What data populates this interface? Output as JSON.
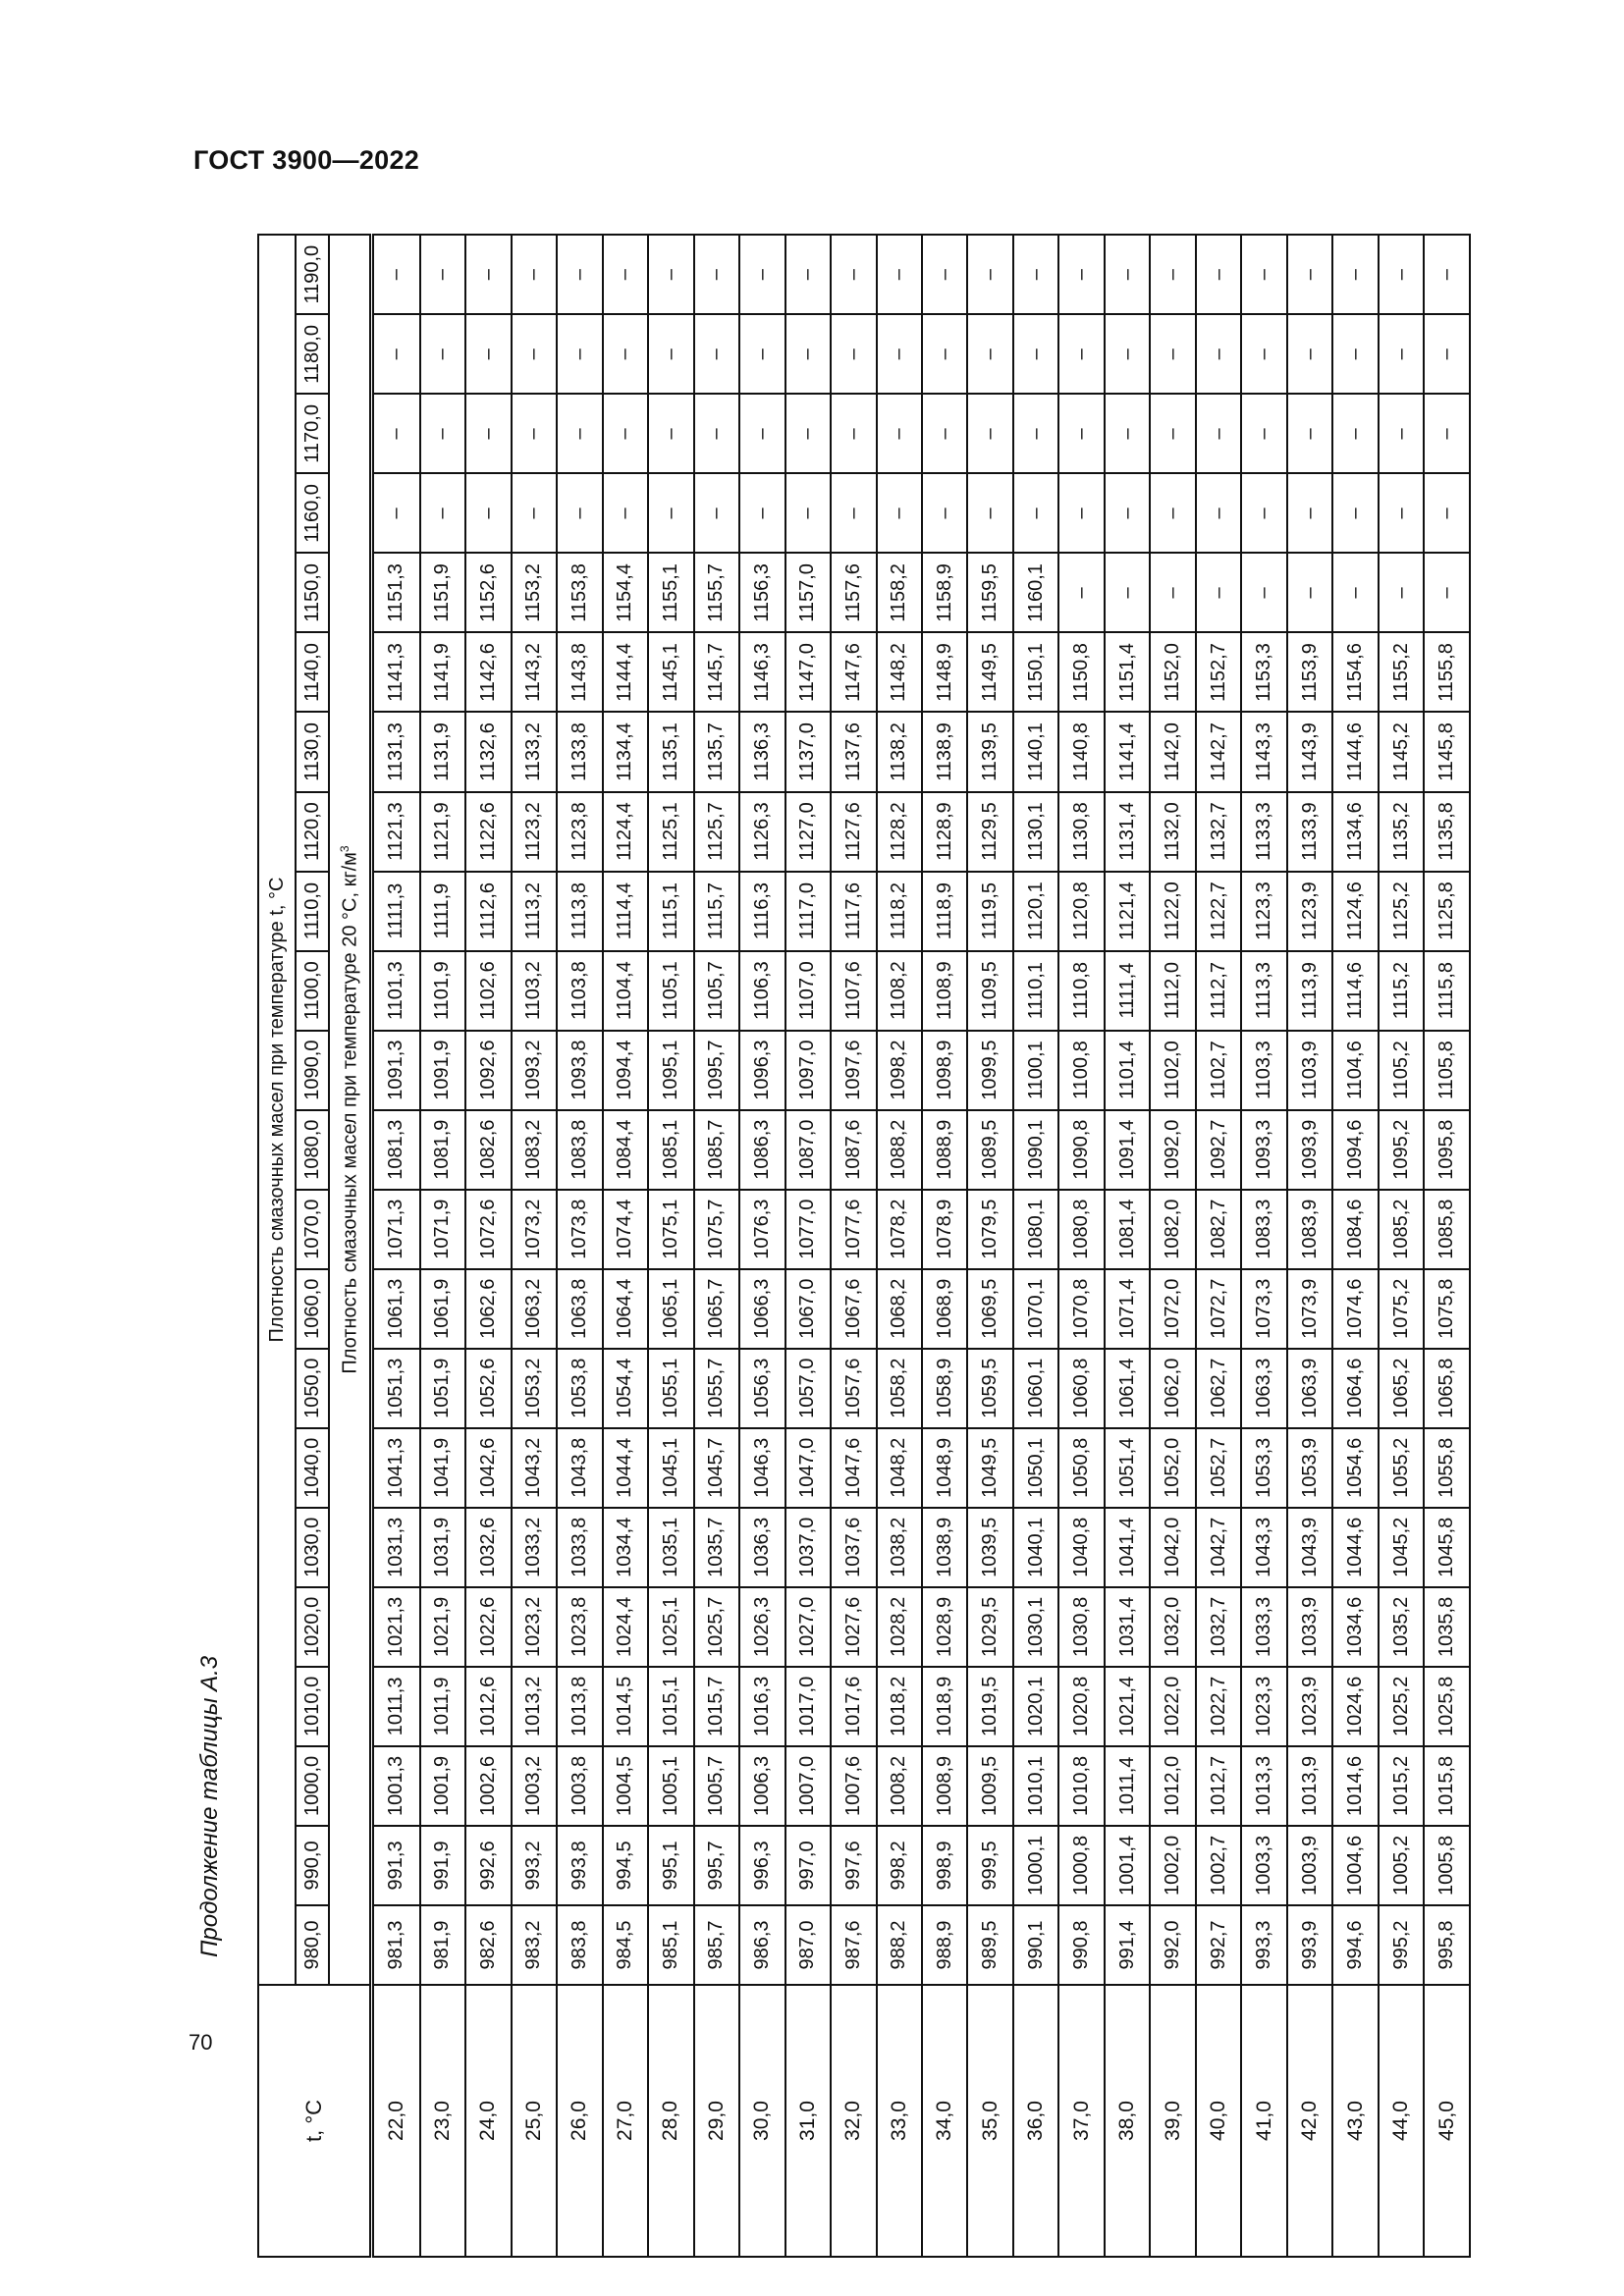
{
  "document": {
    "title": "ГОСТ 3900—2022",
    "page_number": "70"
  },
  "table": {
    "caption": "Продолжение таблицы А.3",
    "t_header": "t, °C",
    "header_main": "Плотность смазочных масел при температуре t, °C",
    "header_sub": "Плотность смазочных масел при температуре 20 °С, кг/м",
    "header_sub_sup": "3",
    "densities": [
      "980,0",
      "990,0",
      "1000,0",
      "1010,0",
      "1020,0",
      "1030,0",
      "1040,0",
      "1050,0",
      "1060,0",
      "1070,0",
      "1080,0",
      "1090,0",
      "1100,0",
      "1110,0",
      "1120,0",
      "1130,0",
      "1140,0",
      "1150,0",
      "1160,0",
      "1170,0",
      "1180,0",
      "1190,0"
    ],
    "rows": [
      {
        "t": "22,0",
        "v": [
          "981,3",
          "991,3",
          "1001,3",
          "1011,3",
          "1021,3",
          "1031,3",
          "1041,3",
          "1051,3",
          "1061,3",
          "1071,3",
          "1081,3",
          "1091,3",
          "1101,3",
          "1111,3",
          "1121,3",
          "1131,3",
          "1141,3",
          "1151,3",
          "–",
          "–",
          "–",
          "–"
        ]
      },
      {
        "t": "23,0",
        "v": [
          "981,9",
          "991,9",
          "1001,9",
          "1011,9",
          "1021,9",
          "1031,9",
          "1041,9",
          "1051,9",
          "1061,9",
          "1071,9",
          "1081,9",
          "1091,9",
          "1101,9",
          "1111,9",
          "1121,9",
          "1131,9",
          "1141,9",
          "1151,9",
          "–",
          "–",
          "–",
          "–"
        ]
      },
      {
        "t": "24,0",
        "v": [
          "982,6",
          "992,6",
          "1002,6",
          "1012,6",
          "1022,6",
          "1032,6",
          "1042,6",
          "1052,6",
          "1062,6",
          "1072,6",
          "1082,6",
          "1092,6",
          "1102,6",
          "1112,6",
          "1122,6",
          "1132,6",
          "1142,6",
          "1152,6",
          "–",
          "–",
          "–",
          "–"
        ]
      },
      {
        "t": "25,0",
        "v": [
          "983,2",
          "993,2",
          "1003,2",
          "1013,2",
          "1023,2",
          "1033,2",
          "1043,2",
          "1053,2",
          "1063,2",
          "1073,2",
          "1083,2",
          "1093,2",
          "1103,2",
          "1113,2",
          "1123,2",
          "1133,2",
          "1143,2",
          "1153,2",
          "–",
          "–",
          "–",
          "–"
        ]
      },
      {
        "t": "26,0",
        "v": [
          "983,8",
          "993,8",
          "1003,8",
          "1013,8",
          "1023,8",
          "1033,8",
          "1043,8",
          "1053,8",
          "1063,8",
          "1073,8",
          "1083,8",
          "1093,8",
          "1103,8",
          "1113,8",
          "1123,8",
          "1133,8",
          "1143,8",
          "1153,8",
          "–",
          "–",
          "–",
          "–"
        ]
      },
      {
        "t": "27,0",
        "v": [
          "984,5",
          "994,5",
          "1004,5",
          "1014,5",
          "1024,4",
          "1034,4",
          "1044,4",
          "1054,4",
          "1064,4",
          "1074,4",
          "1084,4",
          "1094,4",
          "1104,4",
          "1114,4",
          "1124,4",
          "1134,4",
          "1144,4",
          "1154,4",
          "–",
          "–",
          "–",
          "–"
        ]
      },
      {
        "t": "28,0",
        "v": [
          "985,1",
          "995,1",
          "1005,1",
          "1015,1",
          "1025,1",
          "1035,1",
          "1045,1",
          "1055,1",
          "1065,1",
          "1075,1",
          "1085,1",
          "1095,1",
          "1105,1",
          "1115,1",
          "1125,1",
          "1135,1",
          "1145,1",
          "1155,1",
          "–",
          "–",
          "–",
          "–"
        ]
      },
      {
        "t": "29,0",
        "v": [
          "985,7",
          "995,7",
          "1005,7",
          "1015,7",
          "1025,7",
          "1035,7",
          "1045,7",
          "1055,7",
          "1065,7",
          "1075,7",
          "1085,7",
          "1095,7",
          "1105,7",
          "1115,7",
          "1125,7",
          "1135,7",
          "1145,7",
          "1155,7",
          "–",
          "–",
          "–",
          "–"
        ]
      },
      {
        "t": "30,0",
        "v": [
          "986,3",
          "996,3",
          "1006,3",
          "1016,3",
          "1026,3",
          "1036,3",
          "1046,3",
          "1056,3",
          "1066,3",
          "1076,3",
          "1086,3",
          "1096,3",
          "1106,3",
          "1116,3",
          "1126,3",
          "1136,3",
          "1146,3",
          "1156,3",
          "–",
          "–",
          "–",
          "–"
        ]
      },
      {
        "t": "31,0",
        "v": [
          "987,0",
          "997,0",
          "1007,0",
          "1017,0",
          "1027,0",
          "1037,0",
          "1047,0",
          "1057,0",
          "1067,0",
          "1077,0",
          "1087,0",
          "1097,0",
          "1107,0",
          "1117,0",
          "1127,0",
          "1137,0",
          "1147,0",
          "1157,0",
          "–",
          "–",
          "–",
          "–"
        ]
      },
      {
        "t": "32,0",
        "v": [
          "987,6",
          "997,6",
          "1007,6",
          "1017,6",
          "1027,6",
          "1037,6",
          "1047,6",
          "1057,6",
          "1067,6",
          "1077,6",
          "1087,6",
          "1097,6",
          "1107,6",
          "1117,6",
          "1127,6",
          "1137,6",
          "1147,6",
          "1157,6",
          "–",
          "–",
          "–",
          "–"
        ]
      },
      {
        "t": "33,0",
        "v": [
          "988,2",
          "998,2",
          "1008,2",
          "1018,2",
          "1028,2",
          "1038,2",
          "1048,2",
          "1058,2",
          "1068,2",
          "1078,2",
          "1088,2",
          "1098,2",
          "1108,2",
          "1118,2",
          "1128,2",
          "1138,2",
          "1148,2",
          "1158,2",
          "–",
          "–",
          "–",
          "–"
        ]
      },
      {
        "t": "34,0",
        "v": [
          "988,9",
          "998,9",
          "1008,9",
          "1018,9",
          "1028,9",
          "1038,9",
          "1048,9",
          "1058,9",
          "1068,9",
          "1078,9",
          "1088,9",
          "1098,9",
          "1108,9",
          "1118,9",
          "1128,9",
          "1138,9",
          "1148,9",
          "1158,9",
          "–",
          "–",
          "–",
          "–"
        ]
      },
      {
        "t": "35,0",
        "v": [
          "989,5",
          "999,5",
          "1009,5",
          "1019,5",
          "1029,5",
          "1039,5",
          "1049,5",
          "1059,5",
          "1069,5",
          "1079,5",
          "1089,5",
          "1099,5",
          "1109,5",
          "1119,5",
          "1129,5",
          "1139,5",
          "1149,5",
          "1159,5",
          "–",
          "–",
          "–",
          "–"
        ]
      },
      {
        "t": "36,0",
        "v": [
          "990,1",
          "1000,1",
          "1010,1",
          "1020,1",
          "1030,1",
          "1040,1",
          "1050,1",
          "1060,1",
          "1070,1",
          "1080,1",
          "1090,1",
          "1100,1",
          "1110,1",
          "1120,1",
          "1130,1",
          "1140,1",
          "1150,1",
          "1160,1",
          "–",
          "–",
          "–",
          "–"
        ]
      },
      {
        "t": "37,0",
        "v": [
          "990,8",
          "1000,8",
          "1010,8",
          "1020,8",
          "1030,8",
          "1040,8",
          "1050,8",
          "1060,8",
          "1070,8",
          "1080,8",
          "1090,8",
          "1100,8",
          "1110,8",
          "1120,8",
          "1130,8",
          "1140,8",
          "1150,8",
          "–",
          "–",
          "–",
          "–",
          "–"
        ]
      },
      {
        "t": "38,0",
        "v": [
          "991,4",
          "1001,4",
          "1011,4",
          "1021,4",
          "1031,4",
          "1041,4",
          "1051,4",
          "1061,4",
          "1071,4",
          "1081,4",
          "1091,4",
          "1101,4",
          "1111,4",
          "1121,4",
          "1131,4",
          "1141,4",
          "1151,4",
          "–",
          "–",
          "–",
          "–",
          "–"
        ]
      },
      {
        "t": "39,0",
        "v": [
          "992,0",
          "1002,0",
          "1012,0",
          "1022,0",
          "1032,0",
          "1042,0",
          "1052,0",
          "1062,0",
          "1072,0",
          "1082,0",
          "1092,0",
          "1102,0",
          "1112,0",
          "1122,0",
          "1132,0",
          "1142,0",
          "1152,0",
          "–",
          "–",
          "–",
          "–",
          "–"
        ]
      },
      {
        "t": "40,0",
        "v": [
          "992,7",
          "1002,7",
          "1012,7",
          "1022,7",
          "1032,7",
          "1042,7",
          "1052,7",
          "1062,7",
          "1072,7",
          "1082,7",
          "1092,7",
          "1102,7",
          "1112,7",
          "1122,7",
          "1132,7",
          "1142,7",
          "1152,7",
          "–",
          "–",
          "–",
          "–",
          "–"
        ]
      },
      {
        "t": "41,0",
        "v": [
          "993,3",
          "1003,3",
          "1013,3",
          "1023,3",
          "1033,3",
          "1043,3",
          "1053,3",
          "1063,3",
          "1073,3",
          "1083,3",
          "1093,3",
          "1103,3",
          "1113,3",
          "1123,3",
          "1133,3",
          "1143,3",
          "1153,3",
          "–",
          "–",
          "–",
          "–",
          "–"
        ]
      },
      {
        "t": "42,0",
        "v": [
          "993,9",
          "1003,9",
          "1013,9",
          "1023,9",
          "1033,9",
          "1043,9",
          "1053,9",
          "1063,9",
          "1073,9",
          "1083,9",
          "1093,9",
          "1103,9",
          "1113,9",
          "1123,9",
          "1133,9",
          "1143,9",
          "1153,9",
          "–",
          "–",
          "–",
          "–",
          "–"
        ]
      },
      {
        "t": "43,0",
        "v": [
          "994,6",
          "1004,6",
          "1014,6",
          "1024,6",
          "1034,6",
          "1044,6",
          "1054,6",
          "1064,6",
          "1074,6",
          "1084,6",
          "1094,6",
          "1104,6",
          "1114,6",
          "1124,6",
          "1134,6",
          "1144,6",
          "1154,6",
          "–",
          "–",
          "–",
          "–",
          "–"
        ]
      },
      {
        "t": "44,0",
        "v": [
          "995,2",
          "1005,2",
          "1015,2",
          "1025,2",
          "1035,2",
          "1045,2",
          "1055,2",
          "1065,2",
          "1075,2",
          "1085,2",
          "1095,2",
          "1105,2",
          "1115,2",
          "1125,2",
          "1135,2",
          "1145,2",
          "1155,2",
          "–",
          "–",
          "–",
          "–",
          "–"
        ]
      },
      {
        "t": "45,0",
        "v": [
          "995,8",
          "1005,8",
          "1015,8",
          "1025,8",
          "1035,8",
          "1045,8",
          "1055,8",
          "1065,8",
          "1075,8",
          "1085,8",
          "1095,8",
          "1105,8",
          "1115,8",
          "1125,8",
          "1135,8",
          "1145,8",
          "1155,8",
          "–",
          "–",
          "–",
          "–",
          "–"
        ]
      }
    ]
  }
}
